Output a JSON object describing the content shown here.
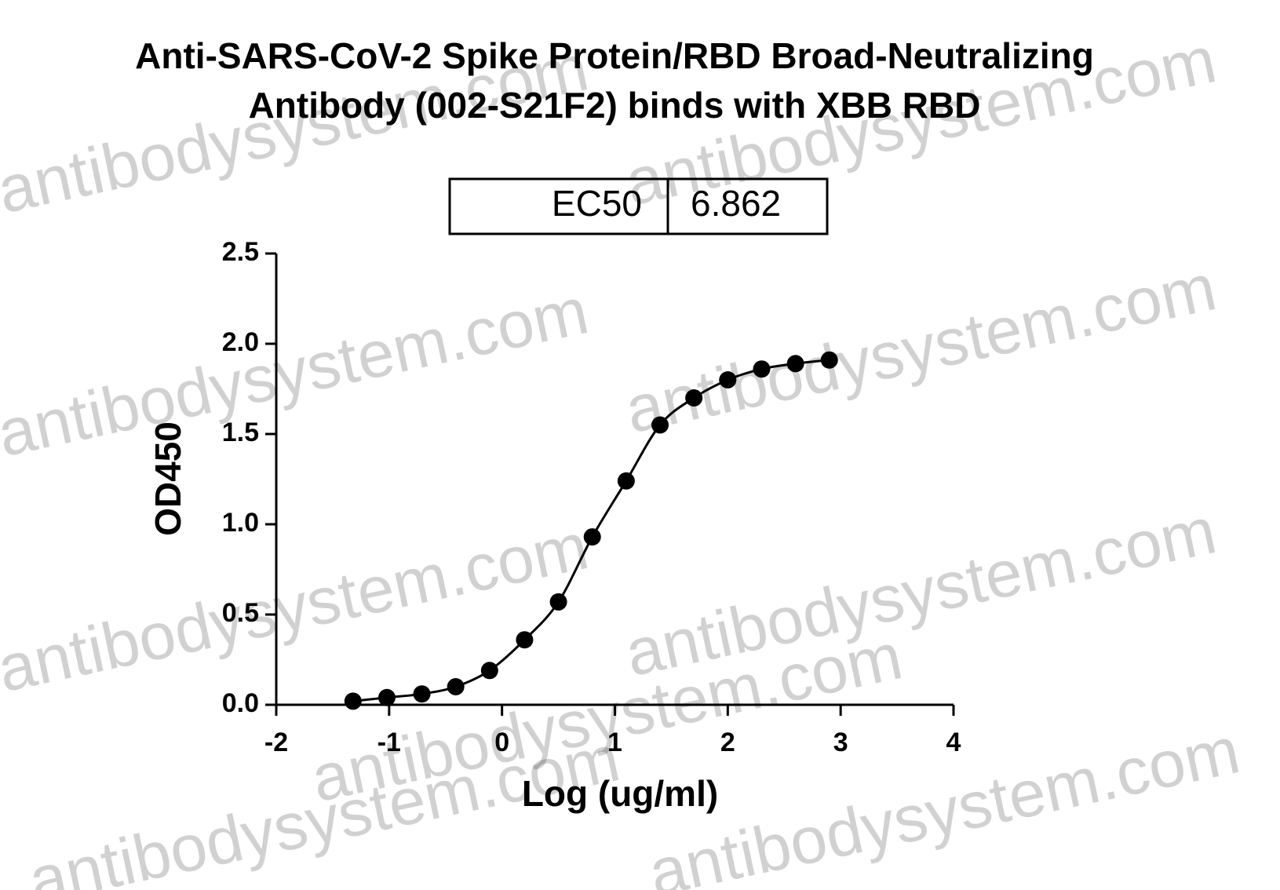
{
  "chart_data": {
    "type": "scatter",
    "title": [
      "Anti-SARS-CoV-2 Spike Protein/RBD Broad-Neutralizing",
      "Antibody (002-S21F2) binds with XBB RBD"
    ],
    "x_label": "Log (ug/ml)",
    "y_label": "OD450",
    "ec50": {
      "label": "EC50",
      "value": 6.862
    },
    "watermark": "antibodysystem.com",
    "series": [
      {
        "color": "#000000",
        "x": [
          -1.32,
          -1.02,
          -0.71,
          -0.41,
          -0.11,
          0.2,
          0.5,
          0.8,
          1.1,
          1.4,
          1.7,
          2.0,
          2.3,
          2.6,
          2.9
        ],
        "values": [
          0.02,
          0.04,
          0.06,
          0.1,
          0.19,
          0.36,
          0.57,
          0.93,
          1.24,
          1.55,
          1.7,
          1.8,
          1.86,
          1.89,
          1.91
        ]
      }
    ],
    "xlim": [
      -2,
      4
    ],
    "xticks": [
      -2,
      -1,
      0,
      1,
      2,
      3,
      4
    ],
    "ylim": [
      0,
      2.5
    ],
    "yticks": [
      {
        "value": 0,
        "label": "0.0"
      },
      0.5,
      {
        "value": 1,
        "label": "1.0"
      },
      1.5,
      {
        "value": 2,
        "label": "2.0"
      },
      2.5
    ]
  }
}
